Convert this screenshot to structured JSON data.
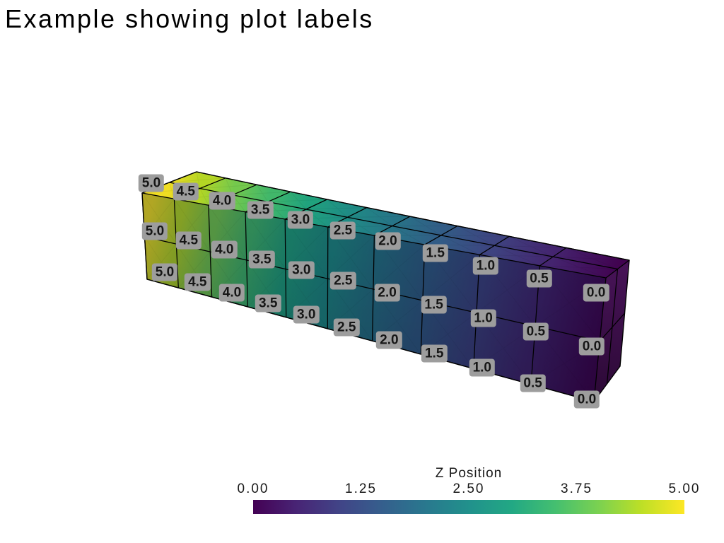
{
  "page": {
    "background": "#ffffff"
  },
  "chart_data": {
    "type": "3d-mesh-point-labels",
    "title": "Example showing plot labels",
    "mesh": {
      "shape": "hexahedral beam",
      "cells_long": 10,
      "cells_high": 2,
      "cells_deep": 2,
      "scalar_name": "Z Position",
      "scalar_range": [
        0,
        5
      ],
      "values_left_to_right": [
        5.0,
        4.5,
        4.0,
        3.5,
        3.0,
        2.5,
        2.0,
        1.5,
        1.0,
        0.5,
        0.0
      ]
    },
    "point_labels": {
      "rows": 3,
      "values_per_row": [
        "5.0",
        "4.5",
        "4.0",
        "3.5",
        "3.0",
        "2.5",
        "2.0",
        "1.5",
        "1.0",
        "0.5",
        "0.0"
      ],
      "box_color": "#9d9d9d",
      "text_color": "#161616"
    },
    "colormap": {
      "name": "viridis",
      "stops": [
        "#440154",
        "#482475",
        "#414487",
        "#355f8d",
        "#29788e",
        "#21918c",
        "#22a884",
        "#44bf70",
        "#7ad151",
        "#bddf26",
        "#fde725"
      ]
    },
    "scalar_bar": {
      "title": "Z Position",
      "tick_labels": [
        "0.00",
        "1.25",
        "2.50",
        "3.75",
        "5.00"
      ],
      "tick_values": [
        0.0,
        1.25,
        2.5,
        3.75,
        5.0
      ]
    },
    "edge_color": "#000000"
  }
}
